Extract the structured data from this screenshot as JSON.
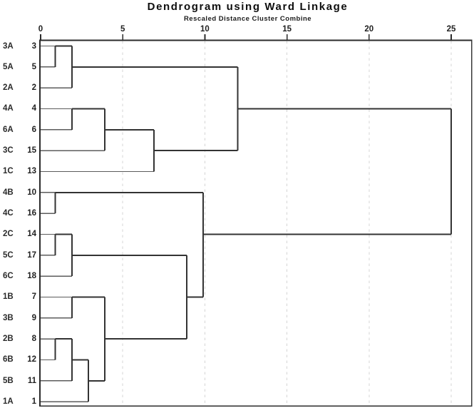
{
  "title": "Dendrogram using Ward Linkage",
  "subtitle": "Rescaled Distance Cluster Combine",
  "colors": {
    "background": "#ffffff",
    "tree_line": "#333333",
    "leaf_line": "#5c5c5c",
    "frame": "#2b2b2b",
    "gridline": "#d4d4d4",
    "text": "#1a1a1a"
  },
  "chart_data": {
    "type": "dendrogram",
    "orientation": "horizontal_top_axis",
    "title": "Dendrogram using Ward Linkage",
    "subtitle": "Rescaled Distance Cluster Combine",
    "axis": {
      "position": "top",
      "ticks": [
        0,
        5,
        10,
        15,
        20,
        25
      ],
      "gridline_values": [
        5,
        10,
        15,
        20,
        25
      ],
      "grid_style": "dashed",
      "xlim": [
        0,
        25
      ]
    },
    "leaves": [
      {
        "case": "3A",
        "num": "3"
      },
      {
        "case": "5A",
        "num": "5"
      },
      {
        "case": "2A",
        "num": "2"
      },
      {
        "case": "4A",
        "num": "4"
      },
      {
        "case": "6A",
        "num": "6"
      },
      {
        "case": "3C",
        "num": "15"
      },
      {
        "case": "1C",
        "num": "13"
      },
      {
        "case": "4B",
        "num": "10"
      },
      {
        "case": "4C",
        "num": "16"
      },
      {
        "case": "2C",
        "num": "14"
      },
      {
        "case": "5C",
        "num": "17"
      },
      {
        "case": "6C",
        "num": "18"
      },
      {
        "case": "1B",
        "num": "7"
      },
      {
        "case": "3B",
        "num": "9"
      },
      {
        "case": "2B",
        "num": "8"
      },
      {
        "case": "6B",
        "num": "12"
      },
      {
        "case": "5B",
        "num": "11"
      },
      {
        "case": "1A",
        "num": "1"
      }
    ],
    "merges": [
      {
        "a": "L0",
        "b": "L1",
        "d": 0.9,
        "out_row": 0
      },
      {
        "a": "M0",
        "b": "L2",
        "d": 1.9,
        "out_row": 1
      },
      {
        "a": "L3",
        "b": "L4",
        "d": 1.9,
        "out_row": 3
      },
      {
        "a": "M2",
        "b": "L5",
        "d": 3.9,
        "out_row": 4
      },
      {
        "a": "M3",
        "b": "L6",
        "d": 6.9,
        "out_row": 5
      },
      {
        "a": "M1",
        "b": "M4",
        "d": 12,
        "out_row": 3
      },
      {
        "a": "L7",
        "b": "L8",
        "d": 0.9,
        "out_row": 7
      },
      {
        "a": "L9",
        "b": "L10",
        "d": 0.9,
        "out_row": 9
      },
      {
        "a": "M7",
        "b": "L11",
        "d": 1.9,
        "out_row": 10
      },
      {
        "a": "L12",
        "b": "L13",
        "d": 1.9,
        "out_row": 12
      },
      {
        "a": "L14",
        "b": "L15",
        "d": 0.9,
        "out_row": 14
      },
      {
        "a": "M10",
        "b": "L16",
        "d": 1.9,
        "out_row": 15
      },
      {
        "a": "M11",
        "b": "L17",
        "d": 2.9,
        "out_row": 16
      },
      {
        "a": "M9",
        "b": "M12",
        "d": 3.9,
        "out_row": 14
      },
      {
        "a": "M8",
        "b": "M13",
        "d": 8.9,
        "out_row": 12
      },
      {
        "a": "M6",
        "b": "M14",
        "d": 9.9,
        "out_row": 9
      },
      {
        "a": "M5",
        "b": "M15",
        "d": 25,
        "out_row": null
      }
    ]
  }
}
